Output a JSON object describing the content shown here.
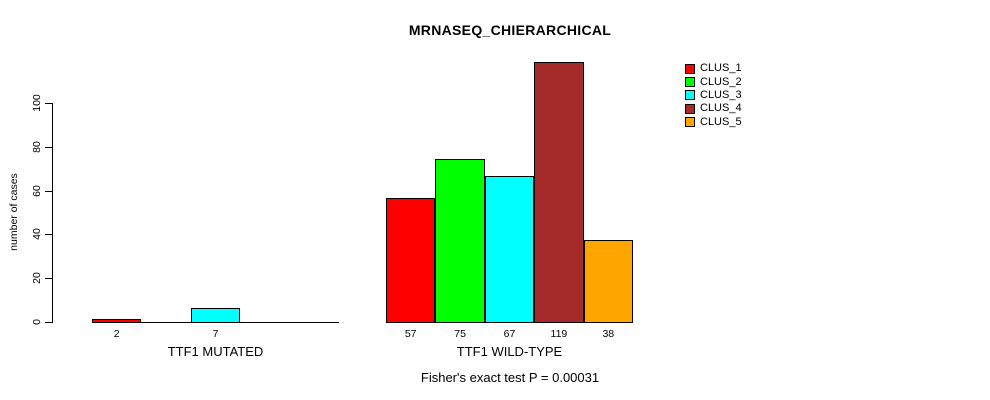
{
  "title": "MRNASEQ_CHIERARCHICAL",
  "ylabel": "number of cases",
  "footer": "Fisher's exact test P = 0.00031",
  "legend": {
    "position": "top-right",
    "items": [
      {
        "label": "CLUS_1",
        "color": "#FF0000"
      },
      {
        "label": "CLUS_2",
        "color": "#00FF00"
      },
      {
        "label": "CLUS_3",
        "color": "#00FFFF"
      },
      {
        "label": "CLUS_4",
        "color": "#A52A2A"
      },
      {
        "label": "CLUS_5",
        "color": "#FFA500"
      }
    ]
  },
  "chart_data": {
    "type": "bar",
    "title": "MRNASEQ_CHIERARCHICAL",
    "xlabel": "",
    "ylabel": "number of cases",
    "yticks": [
      0,
      20,
      40,
      60,
      80,
      100
    ],
    "ylim": [
      0,
      120
    ],
    "grid": false,
    "legend_position": "top-right",
    "categories": [
      "CLUS_1",
      "CLUS_2",
      "CLUS_3",
      "CLUS_4",
      "CLUS_5"
    ],
    "colors": [
      "#FF0000",
      "#00FF00",
      "#00FFFF",
      "#A52A2A",
      "#FFA500"
    ],
    "groups": [
      {
        "label": "TTF1 MUTATED",
        "values": [
          2,
          0,
          7,
          0,
          0
        ]
      },
      {
        "label": "TTF1 WILD-TYPE",
        "values": [
          57,
          75,
          67,
          119,
          38
        ]
      }
    ],
    "bar_labels_shown": "value printed under each non-zero bar",
    "annotation": "Fisher's exact test P = 0.00031"
  }
}
